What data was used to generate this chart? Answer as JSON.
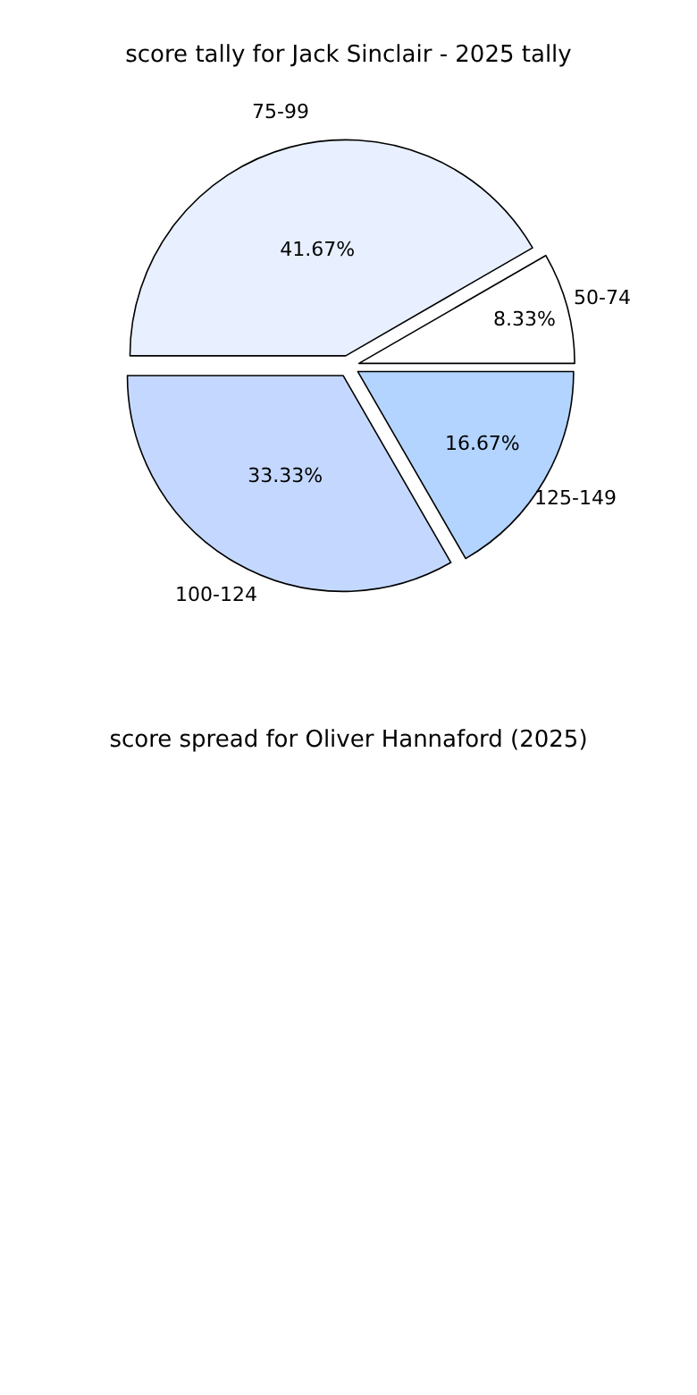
{
  "chart_data": [
    {
      "type": "pie",
      "title": "score tally for Jack Sinclair - 2025 tally",
      "categories": [
        "75-99",
        "50-74",
        "125-149",
        "100-124"
      ],
      "values": [
        41.67,
        8.33,
        16.67,
        33.33
      ],
      "value_labels": [
        "41.67%",
        "8.33%",
        "16.67%",
        "33.33%"
      ],
      "colors": [
        "#e8f0ff",
        "#ffffff",
        "#b3d4ff",
        "#c4d8ff"
      ]
    },
    {
      "type": "other",
      "title": "score spread for Oliver Hannaford (2025)"
    }
  ]
}
